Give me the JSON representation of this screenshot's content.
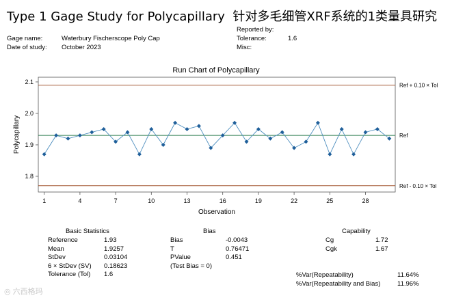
{
  "title": "Type 1 Gage Study for Polycapillary",
  "title_cn": "针对多毛细管XRF系统的1类量具研究",
  "header": {
    "gage_name_label": "Gage name:",
    "gage_name": "Waterbury Fischerscope Poly Cap",
    "date_label": "Date of study:",
    "date": "October 2023",
    "reported_by_label": "Reported by:",
    "tolerance_label": "Tolerance:",
    "tolerance": "1.6",
    "misc_label": "Misc:"
  },
  "chart_data": {
    "type": "line",
    "title": "Run Chart of Polycapillary",
    "xlabel": "Observation",
    "ylabel": "Polycapillary",
    "x_ticks": [
      "1",
      "4",
      "7",
      "10",
      "13",
      "16",
      "19",
      "22",
      "25",
      "28"
    ],
    "y_ticks": [
      "1.8",
      "1.9",
      "2.0",
      "2.1"
    ],
    "xlim": [
      0.5,
      30.5
    ],
    "ylim": [
      1.75,
      2.115
    ],
    "x": [
      1,
      2,
      3,
      4,
      5,
      6,
      7,
      8,
      9,
      10,
      11,
      12,
      13,
      14,
      15,
      16,
      17,
      18,
      19,
      20,
      21,
      22,
      23,
      24,
      25,
      26,
      27,
      28,
      29,
      30
    ],
    "values": [
      1.87,
      1.93,
      1.92,
      1.93,
      1.94,
      1.95,
      1.91,
      1.94,
      1.87,
      1.95,
      1.9,
      1.97,
      1.95,
      1.96,
      1.89,
      1.93,
      1.97,
      1.91,
      1.95,
      1.92,
      1.94,
      1.89,
      1.91,
      1.97,
      1.87,
      1.95,
      1.87,
      1.94,
      1.95,
      1.92
    ],
    "reference_lines": [
      {
        "label": "Ref + 0.10 × Tol",
        "value": 2.09,
        "color": "#a0522d"
      },
      {
        "label": "Ref",
        "value": 1.93,
        "color": "#2e7d4f"
      },
      {
        "label": "Ref - 0.10 × Tol",
        "value": 1.77,
        "color": "#a0522d"
      }
    ],
    "line_color": "#4f8fbf",
    "marker_color": "#1f5f9a"
  },
  "basic_stats": {
    "heading": "Basic Statistics",
    "rows": [
      {
        "label": "Reference",
        "value": "1.93"
      },
      {
        "label": "Mean",
        "value": "1.9257"
      },
      {
        "label": "StDev",
        "value": "0.03104"
      },
      {
        "label": "6 × StDev (SV)",
        "value": "0.18623"
      },
      {
        "label": "Tolerance (Tol)",
        "value": "1.6"
      }
    ]
  },
  "bias": {
    "heading": "Bias",
    "rows": [
      {
        "label": "Bias",
        "value": "-0.0043"
      },
      {
        "label": "T",
        "value": "0.76471"
      },
      {
        "label": "PValue",
        "value": "0.451"
      },
      {
        "label": "(Test Bias = 0)",
        "value": ""
      }
    ]
  },
  "capability": {
    "heading": "Capability",
    "rows": [
      {
        "label": "Cg",
        "value": "1.72"
      },
      {
        "label": "Cgk",
        "value": "1.67"
      }
    ],
    "var_rows": [
      {
        "label": "%Var(Repeatability)",
        "value": "11.64%"
      },
      {
        "label": "%Var(Repeatability and Bias)",
        "value": "11.96%"
      }
    ]
  },
  "watermark": "六西格玛"
}
